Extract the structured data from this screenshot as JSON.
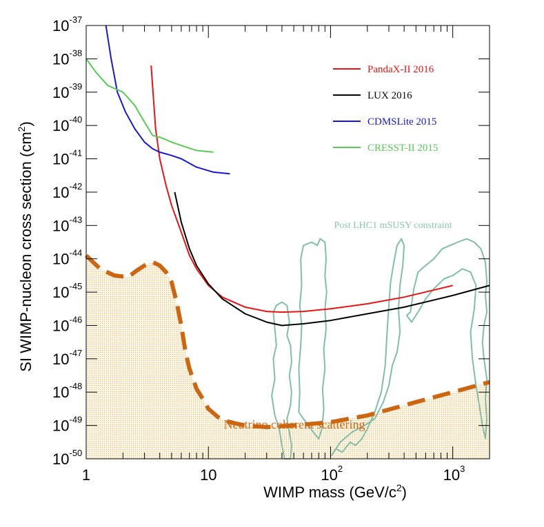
{
  "chart_data": {
    "type": "line",
    "xlabel": "WIMP mass (GeV/c",
    "xlabel_sup": "2",
    "xlabel_end": ")",
    "ylabel": "SI WIMP-nucleon cross section (cm",
    "ylabel_sup": "2",
    "ylabel_end": ")",
    "x_scale": "log",
    "y_scale": "log",
    "xlim": [
      1,
      2000
    ],
    "ylim": [
      1e-50,
      1e-37
    ],
    "x_ticks": [
      {
        "value": 1,
        "base": "1",
        "exp": ""
      },
      {
        "value": 10,
        "base": "10",
        "exp": ""
      },
      {
        "value": 100,
        "base": "10",
        "exp": "2"
      },
      {
        "value": 1000,
        "base": "10",
        "exp": "3"
      }
    ],
    "y_ticks": [
      {
        "base": "10",
        "exp": "-37"
      },
      {
        "base": "10",
        "exp": "-38"
      },
      {
        "base": "10",
        "exp": "-39"
      },
      {
        "base": "10",
        "exp": "-40"
      },
      {
        "base": "10",
        "exp": "-41"
      },
      {
        "base": "10",
        "exp": "-42"
      },
      {
        "base": "10",
        "exp": "-43"
      },
      {
        "base": "10",
        "exp": "-44"
      },
      {
        "base": "10",
        "exp": "-45"
      },
      {
        "base": "10",
        "exp": "-46"
      },
      {
        "base": "10",
        "exp": "-47"
      },
      {
        "base": "10",
        "exp": "-48"
      },
      {
        "base": "10",
        "exp": "-49"
      },
      {
        "base": "10",
        "exp": "-50"
      }
    ],
    "series": [
      {
        "name": "PandaX-II 2016",
        "color": "#ee1111",
        "style": "solid",
        "x": [
          3.4,
          3.7,
          4.0,
          4.5,
          5.0,
          6.0,
          7.0,
          8.0,
          10,
          13,
          20,
          30,
          40,
          60,
          100,
          200,
          400,
          1000
        ],
        "y": [
          -38.2,
          -40.1,
          -41.0,
          -41.8,
          -42.4,
          -43.2,
          -43.9,
          -44.3,
          -44.8,
          -45.15,
          -45.45,
          -45.58,
          -45.6,
          -45.58,
          -45.5,
          -45.35,
          -45.15,
          -44.8
        ]
      },
      {
        "name": "LUX 2016",
        "color": "#000000",
        "style": "solid",
        "x": [
          5.3,
          6.0,
          7.0,
          8.0,
          10,
          13,
          20,
          30,
          40,
          60,
          100,
          200,
          400,
          1000,
          2000
        ],
        "y": [
          -42.0,
          -42.9,
          -43.7,
          -44.2,
          -44.75,
          -45.2,
          -45.65,
          -45.9,
          -46.0,
          -45.95,
          -45.85,
          -45.65,
          -45.45,
          -45.1,
          -44.8
        ]
      },
      {
        "name": "CDMSLite 2015",
        "color": "#1515dd",
        "style": "solid",
        "x": [
          1.45,
          1.6,
          1.8,
          2.1,
          2.5,
          3.0,
          3.5,
          4.0,
          5.0,
          6.0,
          8.0,
          11,
          15
        ],
        "y": [
          -37.0,
          -38.0,
          -39.0,
          -39.6,
          -40.1,
          -40.5,
          -40.7,
          -40.8,
          -40.9,
          -41.0,
          -41.25,
          -41.4,
          -41.45
        ]
      },
      {
        "name": "CRESST-II 2015",
        "color": "#55cc55",
        "style": "solid",
        "x": [
          1.0,
          1.2,
          1.5,
          2.0,
          2.5,
          3.0,
          3.5,
          4.0,
          5.0,
          6.0,
          8.0,
          11
        ],
        "y": [
          -38.0,
          -38.4,
          -38.8,
          -39.0,
          -39.4,
          -39.9,
          -40.3,
          -40.35,
          -40.5,
          -40.6,
          -40.75,
          -40.8
        ]
      },
      {
        "name": "Neutrino coherent scattering",
        "color": "#cc6611",
        "style": "dashed",
        "x": [
          1.0,
          1.3,
          1.7,
          2.2,
          2.6,
          3.0,
          3.5,
          4.0,
          4.5,
          5.0,
          5.5,
          6.0,
          6.5,
          7.0,
          8.0,
          9.0,
          10,
          12,
          15,
          20,
          30,
          50,
          100,
          200,
          500,
          1000,
          2000
        ],
        "y": [
          -43.9,
          -44.3,
          -44.5,
          -44.55,
          -44.35,
          -44.2,
          -44.1,
          -44.2,
          -44.4,
          -44.7,
          -45.3,
          -46.0,
          -46.8,
          -47.3,
          -47.9,
          -48.2,
          -48.5,
          -48.75,
          -48.9,
          -49.0,
          -49.05,
          -49.0,
          -48.9,
          -48.7,
          -48.3,
          -48.0,
          -47.7
        ]
      }
    ],
    "legend": [
      {
        "label": "PandaX-II 2016",
        "color": "#ee1111"
      },
      {
        "label": "LUX 2016",
        "color": "#000000"
      },
      {
        "label": "CDMSLite 2015",
        "color": "#1515dd"
      },
      {
        "label": "CRESST-II 2015",
        "color": "#55cc55"
      }
    ],
    "legend_position": "top-right",
    "annotations": [
      {
        "text": "Post LHC1 mSUSY constraint",
        "color": "#88c4b0"
      },
      {
        "text": "Neutrino coherent scattering",
        "color": "#cc6611"
      }
    ],
    "neutrino_fill_color": "#f3dca0",
    "msusy_color": "#7fbfa8"
  }
}
